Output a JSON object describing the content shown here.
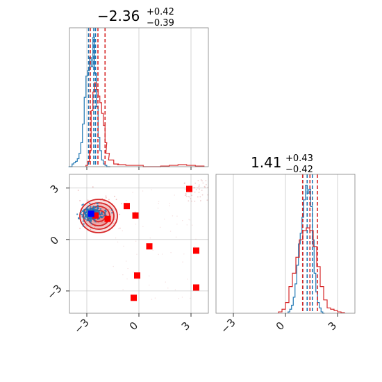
{
  "chart_data": [
    {
      "type": "histogram",
      "panel": "marginal-param-1",
      "title": {
        "value": "−2.36",
        "upper": "+0.42",
        "lower": "−0.39"
      },
      "xlim": [
        -4.0,
        4.0
      ],
      "xticks": [
        -3,
        0,
        3
      ],
      "grid": true,
      "series": [
        {
          "color": "#1f77b4",
          "bin_centers": [
            -4.0,
            -3.9,
            -3.8,
            -3.7,
            -3.6,
            -3.5,
            -3.4,
            -3.3,
            -3.2,
            -3.1,
            -3.0,
            -2.9,
            -2.8,
            -2.7,
            -2.6,
            -2.5,
            -2.4,
            -2.3,
            -2.2,
            -2.1,
            -2.0,
            -1.9,
            -1.8,
            -1.7
          ],
          "heights": [
            0.0,
            0.0,
            0.02,
            0.03,
            0.04,
            0.06,
            0.1,
            0.18,
            0.32,
            0.52,
            0.68,
            0.72,
            0.82,
            0.75,
            0.97,
            0.7,
            0.45,
            0.22,
            0.12,
            0.05,
            0.02,
            0.01,
            0.0,
            0.0
          ],
          "quantile_lines": [
            -2.9,
            -2.6,
            -2.5
          ]
        },
        {
          "color": "#d62728",
          "bin_centers": [
            -3.0,
            -2.9,
            -2.8,
            -2.7,
            -2.6,
            -2.5,
            -2.4,
            -2.3,
            -2.2,
            -2.1,
            -2.0,
            -1.9,
            -1.8,
            -1.6,
            -1.3,
            -1.0,
            -0.5,
            0.0,
            0.5,
            1.0,
            1.5,
            2.0,
            2.5,
            3.0,
            3.5
          ],
          "heights": [
            0.01,
            0.04,
            0.12,
            0.42,
            0.56,
            0.63,
            0.58,
            0.53,
            0.48,
            0.4,
            0.31,
            0.18,
            0.1,
            0.05,
            0.02,
            0.015,
            0.01,
            0.01,
            0.0,
            0.0,
            0.005,
            0.01,
            0.015,
            0.01,
            0.005
          ],
          "quantile_lines": [
            -2.8,
            -2.36,
            -1.95
          ]
        }
      ]
    },
    {
      "type": "scatter",
      "panel": "joint-2d",
      "xlim": [
        -4.0,
        4.0
      ],
      "ylim": [
        -4.3,
        3.8
      ],
      "xticks": [
        -3,
        0,
        3
      ],
      "yticks": [
        -3,
        0,
        3
      ],
      "grid": true,
      "contours_center": [
        -2.36,
        1.41
      ],
      "samples_blue_center": [
        -2.7,
        1.5
      ],
      "red_square_points": [
        [
          -0.7,
          1.95
        ],
        [
          -0.2,
          1.4
        ],
        [
          0.6,
          -0.4
        ],
        [
          -0.1,
          -2.1
        ],
        [
          -0.3,
          -3.4
        ],
        [
          2.9,
          2.95
        ],
        [
          3.3,
          -0.65
        ],
        [
          3.3,
          -2.8
        ],
        [
          -2.5,
          1.4
        ],
        [
          -1.8,
          1.2
        ]
      ],
      "blue_square_points": [
        [
          -2.75,
          1.5
        ]
      ]
    },
    {
      "type": "histogram",
      "panel": "marginal-param-2",
      "title": {
        "value": "1.41",
        "upper": "+0.43",
        "lower": "−0.42"
      },
      "xlim": [
        -4.0,
        4.0
      ],
      "xticks": [
        -3,
        0,
        3
      ],
      "grid": true,
      "series": [
        {
          "color": "#1f77b4",
          "bin_centers": [
            0.2,
            0.3,
            0.4,
            0.5,
            0.6,
            0.7,
            0.8,
            0.9,
            1.0,
            1.1,
            1.2,
            1.3,
            1.4,
            1.5,
            1.6,
            1.7,
            1.8,
            1.9,
            2.0,
            2.1,
            2.2
          ],
          "heights": [
            0.01,
            0.03,
            0.06,
            0.12,
            0.22,
            0.36,
            0.52,
            0.6,
            0.72,
            0.85,
            0.96,
            0.9,
            0.93,
            0.8,
            0.55,
            0.3,
            0.16,
            0.08,
            0.04,
            0.01,
            0.0
          ],
          "quantile_lines": [
            1.0,
            1.25,
            1.55
          ]
        },
        {
          "color": "#d62728",
          "bin_centers": [
            -0.3,
            -0.1,
            0.1,
            0.3,
            0.5,
            0.7,
            0.9,
            1.1,
            1.3,
            1.5,
            1.7,
            1.9,
            2.1,
            2.3,
            2.5,
            2.7,
            2.9,
            3.1,
            3.3
          ],
          "heights": [
            0.01,
            0.03,
            0.08,
            0.2,
            0.3,
            0.42,
            0.55,
            0.62,
            0.64,
            0.62,
            0.5,
            0.35,
            0.2,
            0.1,
            0.04,
            0.03,
            0.02,
            0.01,
            0.005
          ],
          "quantile_lines": [
            0.99,
            1.41,
            1.84
          ]
        }
      ]
    }
  ]
}
